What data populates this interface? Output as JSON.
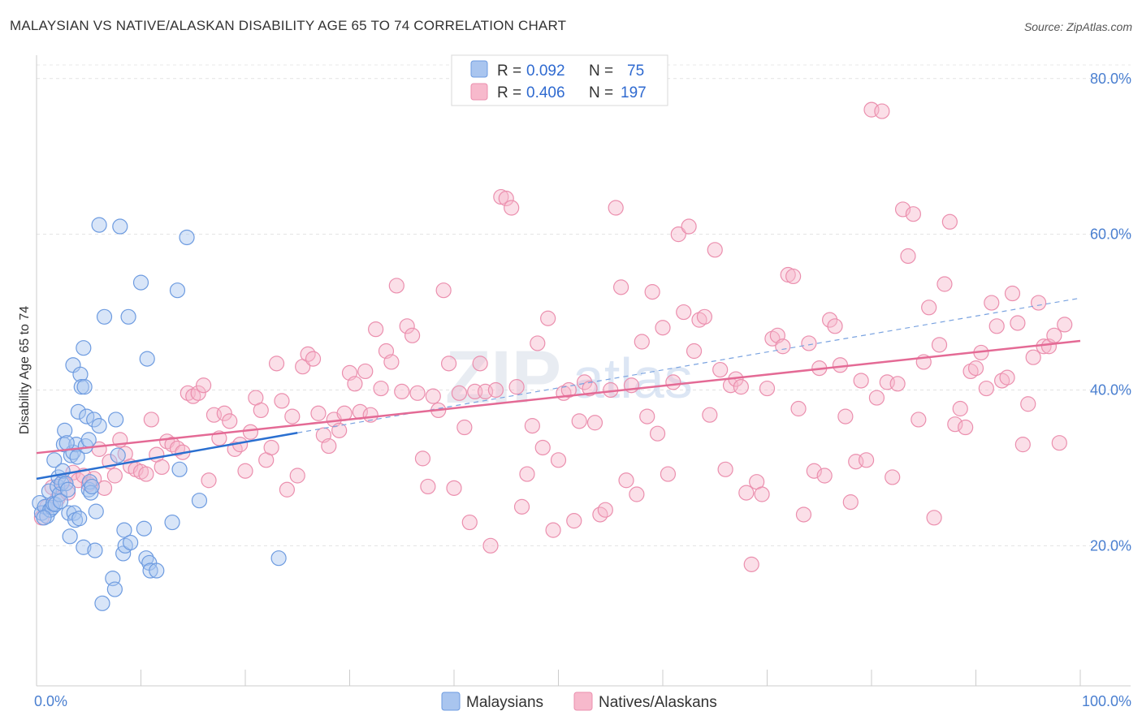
{
  "header": {
    "title": "MALAYSIAN VS NATIVE/ALASKAN DISABILITY AGE 65 TO 74 CORRELATION CHART",
    "source": "Source: ZipAtlas.com"
  },
  "watermark": {
    "zip": "ZIP",
    "atlas": "atlas"
  },
  "legend": {
    "rows": [
      {
        "r_label": "R =",
        "r_value": "0.092",
        "n_label": "N =",
        "n_value": "75",
        "color": "#a9c5ef"
      },
      {
        "r_label": "R =",
        "r_value": "0.406",
        "n_label": "N =",
        "n_value": "197",
        "color": "#f7b9cc"
      }
    ]
  },
  "bottom_legend": [
    {
      "label": "Malaysians",
      "color": "#a9c5ef"
    },
    {
      "label": "Natives/Alaskans",
      "color": "#f7b9cc"
    }
  ],
  "chart_data": {
    "type": "scatter",
    "title": "MALAYSIAN VS NATIVE/ALASKAN DISABILITY AGE 65 TO 74 CORRELATION CHART",
    "xlabel": "",
    "ylabel": "Disability Age 65 to 74",
    "xlim": [
      0,
      100
    ],
    "ylim": [
      2,
      83
    ],
    "x_tick_labels": [
      {
        "value": 0,
        "label": "0.0%"
      },
      {
        "value": 100,
        "label": "100.0%"
      }
    ],
    "x_minor_ticks": [
      0,
      10,
      20,
      30,
      40,
      50,
      60,
      70,
      80,
      90,
      100
    ],
    "y_tick_labels": [
      {
        "value": 20,
        "label": "20.0%"
      },
      {
        "value": 40,
        "label": "40.0%"
      },
      {
        "value": 60,
        "label": "60.0%"
      },
      {
        "value": 80,
        "label": "80.0%"
      }
    ],
    "grid": true,
    "legend_position": "top-center",
    "colors": {
      "malaysians_fill": "#a9c5ef",
      "malaysians_stroke": "#6d9be0",
      "malaysians_line": "#2a6fd0",
      "natives_fill": "#f7b9cc",
      "natives_stroke": "#eb8fae",
      "natives_line": "#e46a95"
    },
    "series": [
      {
        "name": "Malaysians",
        "r": 0.092,
        "n": 75,
        "trend_solid": {
          "x": [
            0,
            25
          ],
          "y": [
            28.6,
            34.5
          ]
        },
        "trend_dashed": {
          "x": [
            25,
            100
          ],
          "y": [
            34.5,
            51.8
          ]
        },
        "points": [
          [
            0.3,
            25.5
          ],
          [
            0.5,
            24.2
          ],
          [
            0.8,
            25.0
          ],
          [
            1.0,
            23.8
          ],
          [
            1.2,
            27.0
          ],
          [
            1.3,
            24.6
          ],
          [
            1.5,
            24.9
          ],
          [
            1.6,
            25.4
          ],
          [
            1.7,
            31.0
          ],
          [
            1.8,
            25.3
          ],
          [
            2.0,
            27.6
          ],
          [
            2.1,
            28.8
          ],
          [
            2.2,
            26.6
          ],
          [
            2.3,
            25.7
          ],
          [
            2.4,
            28.0
          ],
          [
            2.5,
            29.6
          ],
          [
            2.6,
            33.0
          ],
          [
            2.7,
            34.8
          ],
          [
            2.8,
            28.0
          ],
          [
            3.0,
            27.2
          ],
          [
            3.1,
            24.2
          ],
          [
            3.2,
            21.2
          ],
          [
            3.3,
            31.6
          ],
          [
            3.5,
            32.0
          ],
          [
            3.5,
            43.2
          ],
          [
            3.6,
            24.2
          ],
          [
            3.7,
            23.3
          ],
          [
            3.8,
            33.0
          ],
          [
            3.9,
            31.4
          ],
          [
            4.0,
            37.2
          ],
          [
            4.1,
            23.5
          ],
          [
            4.2,
            42.0
          ],
          [
            4.3,
            40.4
          ],
          [
            4.5,
            45.4
          ],
          [
            4.5,
            19.8
          ],
          [
            4.6,
            40.4
          ],
          [
            4.7,
            32.8
          ],
          [
            4.8,
            36.6
          ],
          [
            5.0,
            33.6
          ],
          [
            5.0,
            27.2
          ],
          [
            5.1,
            28.2
          ],
          [
            5.2,
            26.8
          ],
          [
            5.3,
            27.6
          ],
          [
            5.5,
            36.2
          ],
          [
            5.6,
            19.4
          ],
          [
            5.7,
            24.4
          ],
          [
            6.0,
            35.4
          ],
          [
            6.0,
            61.2
          ],
          [
            6.3,
            12.6
          ],
          [
            6.5,
            49.4
          ],
          [
            7.3,
            15.8
          ],
          [
            7.5,
            14.4
          ],
          [
            7.6,
            36.2
          ],
          [
            7.8,
            31.6
          ],
          [
            8.0,
            61.0
          ],
          [
            8.3,
            19.0
          ],
          [
            8.4,
            22.0
          ],
          [
            8.5,
            20.0
          ],
          [
            8.8,
            49.4
          ],
          [
            9.0,
            20.4
          ],
          [
            10.0,
            53.8
          ],
          [
            10.3,
            22.2
          ],
          [
            10.5,
            18.4
          ],
          [
            10.6,
            44.0
          ],
          [
            10.8,
            17.8
          ],
          [
            10.9,
            16.8
          ],
          [
            11.5,
            16.8
          ],
          [
            13.0,
            23.0
          ],
          [
            13.5,
            52.8
          ],
          [
            13.7,
            29.8
          ],
          [
            14.4,
            59.6
          ],
          [
            15.6,
            25.8
          ],
          [
            23.2,
            18.4
          ],
          [
            0.7,
            23.6
          ],
          [
            2.9,
            33.2
          ]
        ]
      },
      {
        "name": "Natives/Alaskans",
        "r": 0.406,
        "n": 197,
        "trend_solid": {
          "x": [
            0,
            100
          ],
          "y": [
            31.9,
            46.3
          ]
        },
        "points": [
          [
            0.5,
            23.6
          ],
          [
            1.0,
            25.0
          ],
          [
            1.5,
            27.5
          ],
          [
            2.0,
            26.0
          ],
          [
            2.5,
            28.2
          ],
          [
            3.0,
            26.8
          ],
          [
            3.5,
            29.4
          ],
          [
            4.0,
            28.4
          ],
          [
            4.5,
            29.0
          ],
          [
            5.0,
            27.9
          ],
          [
            5.5,
            28.6
          ],
          [
            6.0,
            32.4
          ],
          [
            6.5,
            27.4
          ],
          [
            7.0,
            30.8
          ],
          [
            7.5,
            29.0
          ],
          [
            8.0,
            33.6
          ],
          [
            8.5,
            31.8
          ],
          [
            9.0,
            30.2
          ],
          [
            9.5,
            29.8
          ],
          [
            10.0,
            29.5
          ],
          [
            10.5,
            29.2
          ],
          [
            11.0,
            36.2
          ],
          [
            11.5,
            31.7
          ],
          [
            12.0,
            30.1
          ],
          [
            12.5,
            33.4
          ],
          [
            13.0,
            33.0
          ],
          [
            13.5,
            32.5
          ],
          [
            14.0,
            32.0
          ],
          [
            14.5,
            39.6
          ],
          [
            15.0,
            39.2
          ],
          [
            15.5,
            39.6
          ],
          [
            16.0,
            40.6
          ],
          [
            16.5,
            28.4
          ],
          [
            17.0,
            36.8
          ],
          [
            17.5,
            33.8
          ],
          [
            18.0,
            37.0
          ],
          [
            18.5,
            36.0
          ],
          [
            19.0,
            32.4
          ],
          [
            19.5,
            33.0
          ],
          [
            20.0,
            29.6
          ],
          [
            20.5,
            34.6
          ],
          [
            21.0,
            39.0
          ],
          [
            21.5,
            37.4
          ],
          [
            22.0,
            31.0
          ],
          [
            22.5,
            32.6
          ],
          [
            23.0,
            43.4
          ],
          [
            23.5,
            38.6
          ],
          [
            24.0,
            27.2
          ],
          [
            24.5,
            36.6
          ],
          [
            25.0,
            29.0
          ],
          [
            25.5,
            43.0
          ],
          [
            26.0,
            44.6
          ],
          [
            26.5,
            44.0
          ],
          [
            27.0,
            37.0
          ],
          [
            27.5,
            34.2
          ],
          [
            28.0,
            32.8
          ],
          [
            28.5,
            36.2
          ],
          [
            29.0,
            34.8
          ],
          [
            29.5,
            37.0
          ],
          [
            30.0,
            42.2
          ],
          [
            30.5,
            40.8
          ],
          [
            31.0,
            37.2
          ],
          [
            31.5,
            42.4
          ],
          [
            32.0,
            36.8
          ],
          [
            32.5,
            47.8
          ],
          [
            33.0,
            40.2
          ],
          [
            33.5,
            45.0
          ],
          [
            34.0,
            43.6
          ],
          [
            34.5,
            53.4
          ],
          [
            35.0,
            39.8
          ],
          [
            35.5,
            48.2
          ],
          [
            36.0,
            47.0
          ],
          [
            36.5,
            39.6
          ],
          [
            37.0,
            31.2
          ],
          [
            37.5,
            27.6
          ],
          [
            38.0,
            39.2
          ],
          [
            38.5,
            37.4
          ],
          [
            39.0,
            52.8
          ],
          [
            39.5,
            43.4
          ],
          [
            40.0,
            27.4
          ],
          [
            40.5,
            39.6
          ],
          [
            41.0,
            35.2
          ],
          [
            41.5,
            23.0
          ],
          [
            42.0,
            39.8
          ],
          [
            42.5,
            43.4
          ],
          [
            43.0,
            39.8
          ],
          [
            43.5,
            20.0
          ],
          [
            44.0,
            40.0
          ],
          [
            44.5,
            64.8
          ],
          [
            45.0,
            64.6
          ],
          [
            45.5,
            63.4
          ],
          [
            46.0,
            40.4
          ],
          [
            46.5,
            25.0
          ],
          [
            47.0,
            29.2
          ],
          [
            47.5,
            35.4
          ],
          [
            48.0,
            46.0
          ],
          [
            48.5,
            32.6
          ],
          [
            49.0,
            49.2
          ],
          [
            49.5,
            22.0
          ],
          [
            50.0,
            31.0
          ],
          [
            50.5,
            39.6
          ],
          [
            51.0,
            40.0
          ],
          [
            51.5,
            23.2
          ],
          [
            52.0,
            36.0
          ],
          [
            52.5,
            41.0
          ],
          [
            53.0,
            40.2
          ],
          [
            53.5,
            35.8
          ],
          [
            54.0,
            24.0
          ],
          [
            54.5,
            24.6
          ],
          [
            55.0,
            40.0
          ],
          [
            55.5,
            63.4
          ],
          [
            56.0,
            53.2
          ],
          [
            56.5,
            28.4
          ],
          [
            57.0,
            40.6
          ],
          [
            57.5,
            26.6
          ],
          [
            58.0,
            46.2
          ],
          [
            58.5,
            36.6
          ],
          [
            59.0,
            52.6
          ],
          [
            59.5,
            34.4
          ],
          [
            60.0,
            48.0
          ],
          [
            60.5,
            29.2
          ],
          [
            61.0,
            41.0
          ],
          [
            61.5,
            60.0
          ],
          [
            62.0,
            50.0
          ],
          [
            62.5,
            61.0
          ],
          [
            63.0,
            45.0
          ],
          [
            63.5,
            49.0
          ],
          [
            64.0,
            49.4
          ],
          [
            64.5,
            36.8
          ],
          [
            65.0,
            58.0
          ],
          [
            65.5,
            42.6
          ],
          [
            66.0,
            29.8
          ],
          [
            66.5,
            40.6
          ],
          [
            67.0,
            41.4
          ],
          [
            67.5,
            40.4
          ],
          [
            68.0,
            26.8
          ],
          [
            68.5,
            17.6
          ],
          [
            69.0,
            28.2
          ],
          [
            69.5,
            26.6
          ],
          [
            70.0,
            40.2
          ],
          [
            70.5,
            46.6
          ],
          [
            71.0,
            47.0
          ],
          [
            71.5,
            45.6
          ],
          [
            72.0,
            54.8
          ],
          [
            72.5,
            54.6
          ],
          [
            73.0,
            37.6
          ],
          [
            73.5,
            24.0
          ],
          [
            74.0,
            46.0
          ],
          [
            74.5,
            29.6
          ],
          [
            75.0,
            42.8
          ],
          [
            75.5,
            29.0
          ],
          [
            76.0,
            49.0
          ],
          [
            76.5,
            48.2
          ],
          [
            77.0,
            43.2
          ],
          [
            77.5,
            36.6
          ],
          [
            78.0,
            25.6
          ],
          [
            78.5,
            30.8
          ],
          [
            79.0,
            41.2
          ],
          [
            79.5,
            31.0
          ],
          [
            80.0,
            76.0
          ],
          [
            80.5,
            39.0
          ],
          [
            81.0,
            75.8
          ],
          [
            81.5,
            41.0
          ],
          [
            82.0,
            28.8
          ],
          [
            82.5,
            40.8
          ],
          [
            83.0,
            63.2
          ],
          [
            83.5,
            57.2
          ],
          [
            84.0,
            62.6
          ],
          [
            84.5,
            36.2
          ],
          [
            85.0,
            43.6
          ],
          [
            85.5,
            50.6
          ],
          [
            86.0,
            23.6
          ],
          [
            86.5,
            45.8
          ],
          [
            87.0,
            53.6
          ],
          [
            87.5,
            61.6
          ],
          [
            88.0,
            35.6
          ],
          [
            88.5,
            37.6
          ],
          [
            89.0,
            35.2
          ],
          [
            89.5,
            42.4
          ],
          [
            90.0,
            42.8
          ],
          [
            90.5,
            44.8
          ],
          [
            91.0,
            40.2
          ],
          [
            91.5,
            51.2
          ],
          [
            92.0,
            48.2
          ],
          [
            92.5,
            41.2
          ],
          [
            93.0,
            41.6
          ],
          [
            93.5,
            52.4
          ],
          [
            94.0,
            48.6
          ],
          [
            94.5,
            33.0
          ],
          [
            95.0,
            38.2
          ],
          [
            95.5,
            44.2
          ],
          [
            96.0,
            51.2
          ],
          [
            96.5,
            45.6
          ],
          [
            97.0,
            45.6
          ],
          [
            97.5,
            47.0
          ],
          [
            98.0,
            33.2
          ],
          [
            98.5,
            48.4
          ]
        ]
      }
    ]
  }
}
